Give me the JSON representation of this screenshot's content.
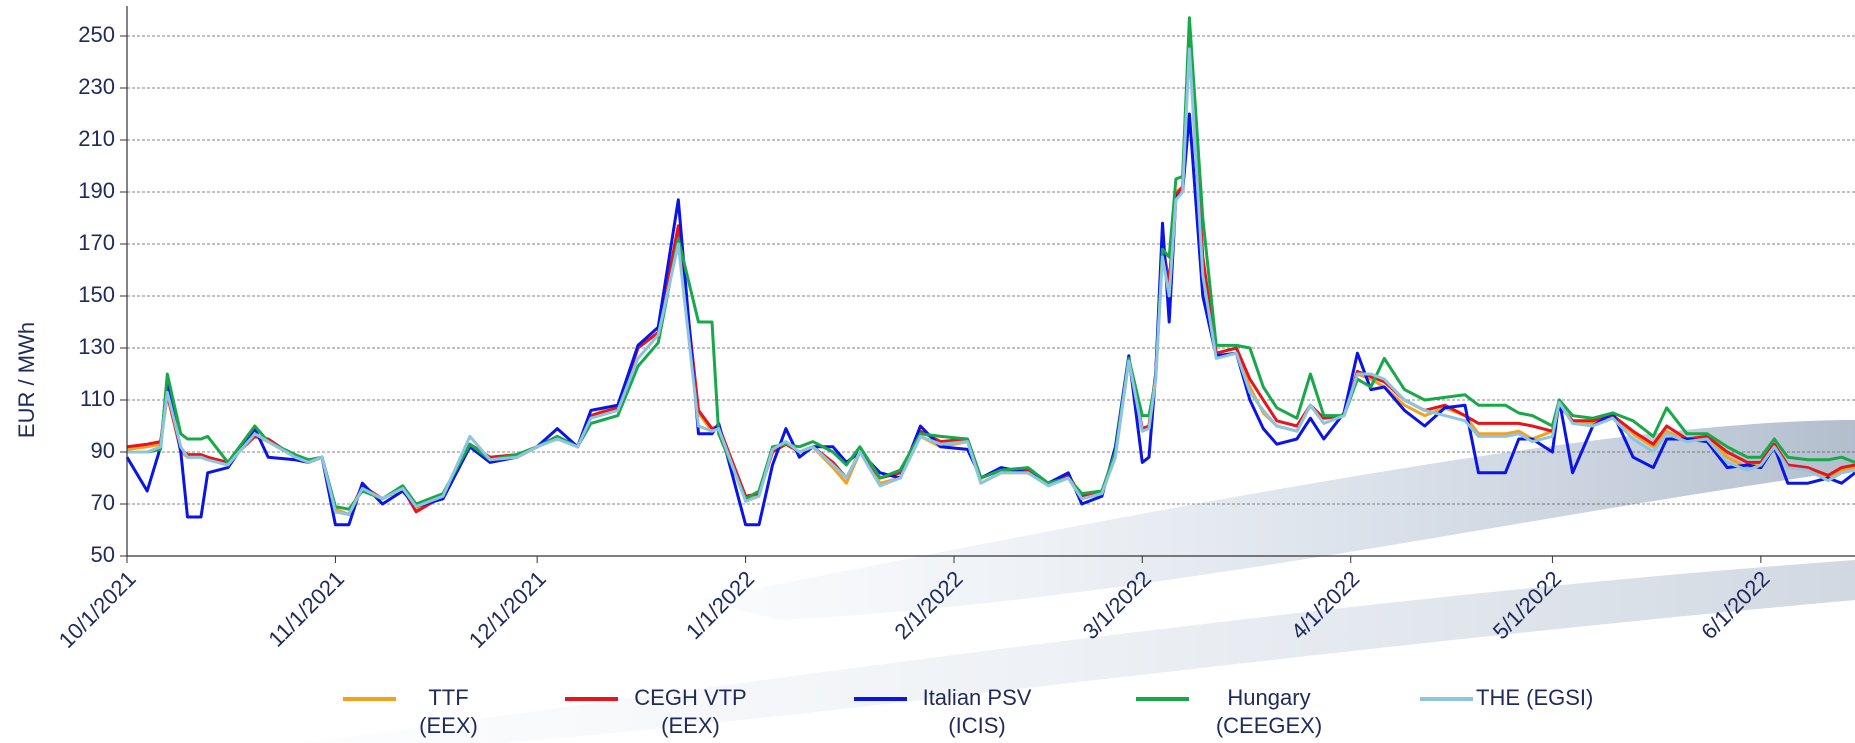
{
  "chart_data": {
    "type": "line",
    "y_label": "EUR / MWh",
    "x": [
      "10/1/2021",
      "10/4/2021",
      "10/6/2021",
      "10/7/2021",
      "10/9/2021",
      "10/10/2021",
      "10/12/2021",
      "10/13/2021",
      "10/16/2021",
      "10/20/2021",
      "10/22/2021",
      "10/26/2021",
      "10/28/2021",
      "10/30/2021",
      "11/1/2021",
      "11/3/2021",
      "11/5/2021",
      "11/8/2021",
      "11/11/2021",
      "11/13/2021",
      "11/17/2021",
      "11/21/2021",
      "11/24/2021",
      "11/28/2021",
      "12/1/2021",
      "12/4/2021",
      "12/7/2021",
      "12/9/2021",
      "12/13/2021",
      "12/16/2021",
      "12/19/2021",
      "12/22/2021",
      "12/25/2021",
      "12/27/2021",
      "12/28/2021",
      "1/1/2022",
      "1/3/2022",
      "1/5/2022",
      "1/7/2022",
      "1/9/2022",
      "1/11/2022",
      "1/14/2022",
      "1/16/2022",
      "1/18/2022",
      "1/21/2022",
      "1/24/2022",
      "1/27/2022",
      "1/30/2022",
      "2/3/2022",
      "2/5/2022",
      "2/8/2022",
      "2/12/2022",
      "2/15/2022",
      "2/18/2022",
      "2/20/2022",
      "2/23/2022",
      "2/25/2022",
      "2/27/2022",
      "3/1/2022",
      "3/2/2022",
      "3/3/2022",
      "3/4/2022",
      "3/5/2022",
      "3/6/2022",
      "3/7/2022",
      "3/8/2022",
      "3/10/2022",
      "3/12/2022",
      "3/15/2022",
      "3/17/2022",
      "3/19/2022",
      "3/21/2022",
      "3/24/2022",
      "3/26/2022",
      "3/28/2022",
      "3/31/2022",
      "4/2/2022",
      "4/4/2022",
      "4/6/2022",
      "4/9/2022",
      "4/12/2022",
      "4/15/2022",
      "4/18/2022",
      "4/20/2022",
      "4/24/2022",
      "4/26/2022",
      "4/28/2022",
      "5/1/2022",
      "5/2/2022",
      "5/4/2022",
      "5/7/2022",
      "5/10/2022",
      "5/13/2022",
      "5/16/2022",
      "5/18/2022",
      "5/21/2022",
      "5/24/2022",
      "5/27/2022",
      "5/30/2022",
      "6/1/2022",
      "6/3/2022",
      "6/5/2022",
      "6/8/2022",
      "6/11/2022",
      "6/13/2022",
      "6/15/2022"
    ],
    "series": [
      {
        "name": "TTF (EEX)",
        "color": "#f5a01f",
        "values": [
          91,
          92,
          93,
          112,
          90,
          88,
          88,
          87,
          86,
          96,
          94,
          88,
          86,
          88,
          68,
          66,
          76,
          72,
          76,
          68,
          73,
          92,
          88,
          88,
          92,
          96,
          92,
          104,
          108,
          130,
          136,
          175,
          105,
          98,
          100,
          72,
          74,
          90,
          93,
          90,
          92,
          84,
          78,
          90,
          78,
          80,
          96,
          92,
          94,
          78,
          82,
          82,
          77,
          80,
          72,
          74,
          89,
          125,
          98,
          100,
          120,
          172,
          150,
          190,
          192,
          250,
          160,
          127,
          128,
          115,
          105,
          100,
          98,
          108,
          101,
          104,
          120,
          118,
          115,
          108,
          104,
          107,
          104,
          97,
          97,
          98,
          95,
          98,
          108,
          102,
          101,
          104,
          97,
          92,
          98,
          94,
          96,
          88,
          84,
          86,
          93,
          84,
          84,
          80,
          83,
          84
        ]
      },
      {
        "name": "CEGH VTP (EEX)",
        "color": "#e8141b",
        "values": [
          92,
          93,
          94,
          112,
          91,
          89,
          89,
          88,
          86,
          96,
          95,
          88,
          86,
          88,
          67,
          66,
          77,
          72,
          76,
          67,
          73,
          93,
          88,
          89,
          92,
          96,
          92,
          104,
          107,
          130,
          136,
          177,
          106,
          99,
          100,
          73,
          74,
          90,
          93,
          90,
          92,
          86,
          80,
          90,
          80,
          82,
          98,
          94,
          95,
          80,
          83,
          83,
          78,
          81,
          73,
          74,
          90,
          126,
          99,
          100,
          120,
          170,
          155,
          189,
          192,
          252,
          165,
          128,
          130,
          118,
          110,
          102,
          100,
          108,
          103,
          104,
          121,
          119,
          117,
          110,
          106,
          108,
          104,
          101,
          101,
          101,
          100,
          98,
          108,
          102,
          102,
          104,
          98,
          93,
          100,
          95,
          96,
          90,
          86,
          86,
          93,
          85,
          84,
          81,
          84,
          85
        ]
      },
      {
        "name": "Italian PSV (ICIS)",
        "color": "#0a14e6",
        "values": [
          88,
          75,
          92,
          117,
          90,
          65,
          65,
          82,
          84,
          99,
          88,
          87,
          86,
          88,
          62,
          62,
          78,
          70,
          75,
          69,
          72,
          92,
          86,
          88,
          92,
          99,
          92,
          106,
          108,
          131,
          138,
          187,
          97,
          97,
          101,
          62,
          62,
          85,
          99,
          88,
          92,
          92,
          86,
          90,
          82,
          80,
          100,
          92,
          91,
          80,
          84,
          82,
          78,
          82,
          70,
          73,
          92,
          127,
          86,
          88,
          120,
          178,
          140,
          188,
          190,
          220,
          150,
          127,
          128,
          110,
          99,
          93,
          95,
          103,
          95,
          105,
          128,
          114,
          115,
          106,
          100,
          107,
          108,
          82,
          82,
          95,
          95,
          90,
          110,
          82,
          100,
          105,
          88,
          84,
          95,
          95,
          94,
          84,
          85,
          84,
          92,
          78,
          78,
          80,
          78,
          82
        ]
      },
      {
        "name": "Hungary (CEEGEX)",
        "color": "#18a84a",
        "values": [
          90,
          90,
          91,
          120,
          97,
          95,
          95,
          96,
          86,
          100,
          94,
          89,
          87,
          88,
          69,
          68,
          75,
          72,
          77,
          70,
          74,
          93,
          87,
          89,
          92,
          96,
          92,
          101,
          104,
          123,
          132,
          172,
          140,
          140,
          97,
          72,
          75,
          92,
          93,
          92,
          94,
          90,
          85,
          92,
          80,
          83,
          97,
          96,
          95,
          80,
          83,
          84,
          78,
          80,
          74,
          75,
          90,
          126,
          104,
          104,
          118,
          168,
          165,
          195,
          196,
          257,
          180,
          131,
          131,
          130,
          115,
          107,
          103,
          120,
          104,
          104,
          118,
          115,
          126,
          114,
          110,
          111,
          112,
          108,
          108,
          105,
          104,
          100,
          110,
          104,
          103,
          105,
          102,
          96,
          107,
          97,
          97,
          92,
          88,
          88,
          95,
          88,
          87,
          87,
          88,
          86
        ]
      },
      {
        "name": "THE (EGSI)",
        "color": "#8ec5de",
        "values": [
          90,
          90,
          92,
          113,
          92,
          88,
          88,
          87,
          85,
          97,
          94,
          88,
          86,
          88,
          67,
          66,
          76,
          72,
          76,
          69,
          73,
          96,
          87,
          88,
          92,
          95,
          92,
          103,
          106,
          126,
          135,
          170,
          100,
          98,
          99,
          71,
          73,
          91,
          94,
          90,
          92,
          85,
          80,
          90,
          77,
          80,
          96,
          93,
          94,
          78,
          82,
          82,
          77,
          80,
          72,
          74,
          88,
          125,
          98,
          99,
          118,
          165,
          150,
          187,
          190,
          245,
          158,
          126,
          128,
          113,
          106,
          100,
          98,
          108,
          101,
          104,
          120,
          120,
          118,
          110,
          106,
          104,
          102,
          96,
          96,
          97,
          94,
          96,
          109,
          101,
          100,
          103,
          95,
          90,
          97,
          94,
          95,
          86,
          83,
          85,
          92,
          84,
          83,
          79,
          82,
          83
        ]
      }
    ],
    "xlim": [
      "10/1/2021",
      "6/15/2022"
    ],
    "xticks": [
      "10/1/2021",
      "11/1/2021",
      "12/1/2021",
      "1/1/2022",
      "2/1/2022",
      "3/1/2022",
      "4/1/2022",
      "5/1/2022",
      "6/1/2022"
    ],
    "ylim": [
      50,
      260
    ],
    "yticks": [
      50,
      70,
      90,
      110,
      130,
      150,
      170,
      190,
      210,
      230,
      250
    ],
    "grid": true,
    "legend": "bottom"
  }
}
